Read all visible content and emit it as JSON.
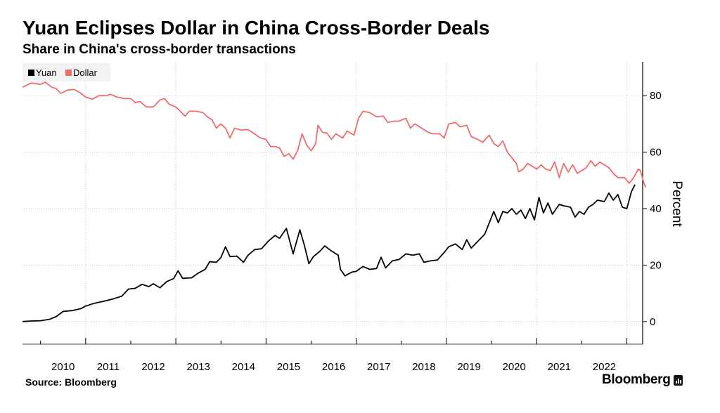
{
  "chart_data": {
    "type": "line",
    "title": "Yuan Eclipses Dollar in China Cross-Border Deals",
    "subtitle": "Share in China's cross-border transactions",
    "ylabel": "Percent",
    "xlabel": "",
    "ylim": [
      -8,
      92
    ],
    "xlim": [
      2009.6,
      2023.35
    ],
    "y_ticks": [
      0,
      20,
      40,
      60,
      80
    ],
    "x_ticks": [
      "2010",
      "2011",
      "2012",
      "2013",
      "2014",
      "2015",
      "2016",
      "2017",
      "2018",
      "2019",
      "2020",
      "2021",
      "2022"
    ],
    "grid": true,
    "legend_position": "top-left",
    "series": [
      {
        "name": "Yuan",
        "color": "#000000",
        "points": [
          [
            2009.6,
            0
          ],
          [
            2009.8,
            0.2
          ],
          [
            2010.0,
            0.3
          ],
          [
            2010.2,
            0.8
          ],
          [
            2010.35,
            1.8
          ],
          [
            2010.5,
            3.6
          ],
          [
            2010.7,
            3.9
          ],
          [
            2010.9,
            4.6
          ],
          [
            2011.0,
            5.5
          ],
          [
            2011.2,
            6.5
          ],
          [
            2011.4,
            7.2
          ],
          [
            2011.6,
            8.0
          ],
          [
            2011.8,
            9.0
          ],
          [
            2011.95,
            11.5
          ],
          [
            2012.1,
            11.8
          ],
          [
            2012.25,
            13.2
          ],
          [
            2012.4,
            12.4
          ],
          [
            2012.5,
            13.4
          ],
          [
            2012.65,
            12.0
          ],
          [
            2012.8,
            14.2
          ],
          [
            2012.95,
            15.2
          ],
          [
            2013.05,
            18.0
          ],
          [
            2013.15,
            15.3
          ],
          [
            2013.35,
            15.5
          ],
          [
            2013.5,
            17.2
          ],
          [
            2013.65,
            18.5
          ],
          [
            2013.75,
            21.2
          ],
          [
            2013.9,
            21.0
          ],
          [
            2014.0,
            22.7
          ],
          [
            2014.1,
            26.5
          ],
          [
            2014.2,
            23.0
          ],
          [
            2014.35,
            23.2
          ],
          [
            2014.5,
            21.0
          ],
          [
            2014.6,
            23.5
          ],
          [
            2014.75,
            25.5
          ],
          [
            2014.9,
            25.8
          ],
          [
            2015.05,
            28.5
          ],
          [
            2015.2,
            30.5
          ],
          [
            2015.3,
            29.5
          ],
          [
            2015.45,
            33.0
          ],
          [
            2015.6,
            24.0
          ],
          [
            2015.75,
            32.5
          ],
          [
            2015.85,
            27.0
          ],
          [
            2015.95,
            20.5
          ],
          [
            2016.05,
            23.0
          ],
          [
            2016.2,
            25.0
          ],
          [
            2016.3,
            26.8
          ],
          [
            2016.45,
            25.0
          ],
          [
            2016.6,
            23.5
          ],
          [
            2016.65,
            18.5
          ],
          [
            2016.75,
            16.2
          ],
          [
            2016.9,
            17.5
          ],
          [
            2017.0,
            17.8
          ],
          [
            2017.15,
            19.5
          ],
          [
            2017.3,
            18.5
          ],
          [
            2017.45,
            18.8
          ],
          [
            2017.55,
            22.8
          ],
          [
            2017.65,
            19.0
          ],
          [
            2017.8,
            21.5
          ],
          [
            2017.95,
            22.0
          ],
          [
            2018.1,
            24.0
          ],
          [
            2018.25,
            23.5
          ],
          [
            2018.4,
            24.0
          ],
          [
            2018.5,
            21.0
          ],
          [
            2018.65,
            21.5
          ],
          [
            2018.8,
            21.8
          ],
          [
            2018.95,
            24.5
          ],
          [
            2019.05,
            26.5
          ],
          [
            2019.2,
            27.5
          ],
          [
            2019.35,
            25.5
          ],
          [
            2019.45,
            29.0
          ],
          [
            2019.55,
            26.0
          ],
          [
            2019.7,
            28.5
          ],
          [
            2019.85,
            31.0
          ],
          [
            2019.95,
            35.0
          ],
          [
            2020.05,
            39.0
          ],
          [
            2020.15,
            35.0
          ],
          [
            2020.25,
            39.0
          ],
          [
            2020.35,
            38.5
          ],
          [
            2020.45,
            40.0
          ],
          [
            2020.55,
            38.0
          ],
          [
            2020.65,
            39.5
          ],
          [
            2020.75,
            36.5
          ],
          [
            2020.85,
            40.0
          ],
          [
            2020.95,
            36.0
          ],
          [
            2021.05,
            44.0
          ],
          [
            2021.15,
            38.5
          ],
          [
            2021.25,
            42.0
          ],
          [
            2021.35,
            38.0
          ],
          [
            2021.5,
            41.5
          ],
          [
            2021.6,
            41.0
          ],
          [
            2021.75,
            40.5
          ],
          [
            2021.85,
            37.0
          ],
          [
            2021.95,
            39.0
          ],
          [
            2022.05,
            38.0
          ],
          [
            2022.15,
            40.5
          ],
          [
            2022.25,
            41.5
          ],
          [
            2022.35,
            43.0
          ],
          [
            2022.5,
            42.5
          ],
          [
            2022.6,
            45.5
          ],
          [
            2022.7,
            43.0
          ],
          [
            2022.8,
            45.0
          ],
          [
            2022.9,
            40.5
          ],
          [
            2023.0,
            40.0
          ],
          [
            2023.1,
            46.0
          ],
          [
            2023.18,
            48.5
          ]
        ]
      },
      {
        "name": "Dollar",
        "color": "#f26b6b",
        "points": [
          [
            2009.6,
            83.0
          ],
          [
            2009.8,
            84.5
          ],
          [
            2010.0,
            84.0
          ],
          [
            2010.1,
            84.8
          ],
          [
            2010.25,
            83.0
          ],
          [
            2010.35,
            82.5
          ],
          [
            2010.45,
            80.8
          ],
          [
            2010.6,
            82.0
          ],
          [
            2010.75,
            82.2
          ],
          [
            2010.9,
            80.8
          ],
          [
            2011.0,
            79.5
          ],
          [
            2011.15,
            78.8
          ],
          [
            2011.3,
            80.0
          ],
          [
            2011.45,
            80.0
          ],
          [
            2011.55,
            80.5
          ],
          [
            2011.7,
            79.5
          ],
          [
            2011.85,
            79.0
          ],
          [
            2012.0,
            79.0
          ],
          [
            2012.1,
            77.5
          ],
          [
            2012.2,
            78.0
          ],
          [
            2012.35,
            76.0
          ],
          [
            2012.5,
            76.0
          ],
          [
            2012.65,
            78.5
          ],
          [
            2012.75,
            79.0
          ],
          [
            2012.85,
            77.0
          ],
          [
            2013.0,
            76.0
          ],
          [
            2013.1,
            74.5
          ],
          [
            2013.2,
            72.8
          ],
          [
            2013.3,
            74.5
          ],
          [
            2013.45,
            74.5
          ],
          [
            2013.6,
            74.0
          ],
          [
            2013.7,
            72.5
          ],
          [
            2013.8,
            71.5
          ],
          [
            2013.9,
            68.5
          ],
          [
            2014.0,
            70.0
          ],
          [
            2014.1,
            68.5
          ],
          [
            2014.2,
            65.0
          ],
          [
            2014.3,
            68.5
          ],
          [
            2014.45,
            67.8
          ],
          [
            2014.6,
            68.0
          ],
          [
            2014.75,
            66.5
          ],
          [
            2014.85,
            65.2
          ],
          [
            2015.0,
            64.5
          ],
          [
            2015.1,
            62.0
          ],
          [
            2015.2,
            62.0
          ],
          [
            2015.3,
            61.5
          ],
          [
            2015.4,
            58.5
          ],
          [
            2015.5,
            59.5
          ],
          [
            2015.6,
            57.5
          ],
          [
            2015.7,
            60.5
          ],
          [
            2015.8,
            66.5
          ],
          [
            2015.9,
            62.5
          ],
          [
            2016.0,
            60.5
          ],
          [
            2016.1,
            63.0
          ],
          [
            2016.15,
            69.5
          ],
          [
            2016.25,
            67.0
          ],
          [
            2016.35,
            66.8
          ],
          [
            2016.45,
            64.5
          ],
          [
            2016.55,
            66.5
          ],
          [
            2016.7,
            65.0
          ],
          [
            2016.8,
            67.5
          ],
          [
            2016.95,
            66.0
          ],
          [
            2017.05,
            72.0
          ],
          [
            2017.15,
            74.5
          ],
          [
            2017.3,
            74.0
          ],
          [
            2017.45,
            72.5
          ],
          [
            2017.6,
            72.8
          ],
          [
            2017.7,
            70.5
          ],
          [
            2017.85,
            71.0
          ],
          [
            2017.95,
            71.0
          ],
          [
            2018.1,
            72.0
          ],
          [
            2018.2,
            68.5
          ],
          [
            2018.3,
            70.0
          ],
          [
            2018.45,
            68.5
          ],
          [
            2018.6,
            67.0
          ],
          [
            2018.7,
            66.5
          ],
          [
            2018.85,
            66.5
          ],
          [
            2018.95,
            65.0
          ],
          [
            2019.05,
            70.0
          ],
          [
            2019.2,
            70.5
          ],
          [
            2019.3,
            69.0
          ],
          [
            2019.45,
            69.5
          ],
          [
            2019.55,
            65.5
          ],
          [
            2019.7,
            64.5
          ],
          [
            2019.8,
            63.5
          ],
          [
            2019.95,
            66.0
          ],
          [
            2020.05,
            63.0
          ],
          [
            2020.15,
            62.0
          ],
          [
            2020.25,
            64.0
          ],
          [
            2020.35,
            60.0
          ],
          [
            2020.45,
            58.0
          ],
          [
            2020.55,
            56.0
          ],
          [
            2020.6,
            53.0
          ],
          [
            2020.7,
            54.0
          ],
          [
            2020.8,
            56.0
          ],
          [
            2020.9,
            55.0
          ],
          [
            2021.0,
            54.0
          ],
          [
            2021.1,
            55.5
          ],
          [
            2021.2,
            54.0
          ],
          [
            2021.3,
            53.5
          ],
          [
            2021.4,
            56.5
          ],
          [
            2021.5,
            51.0
          ],
          [
            2021.6,
            56.0
          ],
          [
            2021.7,
            53.0
          ],
          [
            2021.8,
            55.5
          ],
          [
            2021.9,
            52.5
          ],
          [
            2022.0,
            53.5
          ],
          [
            2022.1,
            54.5
          ],
          [
            2022.2,
            57.0
          ],
          [
            2022.3,
            55.0
          ],
          [
            2022.4,
            56.5
          ],
          [
            2022.5,
            55.5
          ],
          [
            2022.6,
            54.5
          ],
          [
            2022.7,
            52.5
          ],
          [
            2022.8,
            51.0
          ],
          [
            2022.95,
            51.0
          ],
          [
            2023.05,
            49.0
          ],
          [
            2023.15,
            51.0
          ],
          [
            2023.25,
            54.0
          ],
          [
            2023.3,
            53.5
          ],
          [
            2023.38,
            49.0
          ],
          [
            2023.42,
            47.5
          ]
        ]
      }
    ]
  },
  "source": "Source: Bloomberg",
  "brand": "Bloomberg",
  "brand_icon": "bloomberg-chart-icon"
}
